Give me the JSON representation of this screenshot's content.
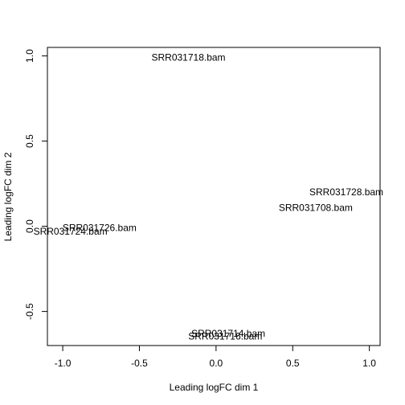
{
  "chart_data": {
    "type": "scatter",
    "marker": "text-labels",
    "xlabel": "Leading logFC dim 1",
    "ylabel": "Leading logFC dim 2",
    "xlim": [
      -1.1,
      1.07
    ],
    "ylim": [
      -0.7,
      1.05
    ],
    "xticks": [
      {
        "value": -1.0,
        "label": "-1.0"
      },
      {
        "value": -0.5,
        "label": "-0.5"
      },
      {
        "value": 0.0,
        "label": "0.0"
      },
      {
        "value": 0.5,
        "label": "0.5"
      },
      {
        "value": 1.0,
        "label": "1.0"
      }
    ],
    "yticks": [
      {
        "value": -0.5,
        "label": "-0.5"
      },
      {
        "value": 0.0,
        "label": "0.0"
      },
      {
        "value": 0.5,
        "label": "0.5"
      },
      {
        "value": 1.0,
        "label": "1.0"
      }
    ],
    "grid": false,
    "points": [
      {
        "label": "SRR031718.bam",
        "x": -0.18,
        "y": 0.99
      },
      {
        "label": "SRR031728.bam",
        "x": 0.85,
        "y": 0.2
      },
      {
        "label": "SRR031708.bam",
        "x": 0.65,
        "y": 0.11
      },
      {
        "label": "SRR031726.bam",
        "x": -0.76,
        "y": -0.01
      },
      {
        "label": "SRR031724.bam",
        "x": -0.95,
        "y": -0.03
      },
      {
        "label": "SRR031714.bam",
        "x": 0.08,
        "y": -0.63
      },
      {
        "label": "SRR031716.bam",
        "x": 0.06,
        "y": -0.645
      }
    ],
    "colors": {
      "text": "#000000",
      "axis": "#000000",
      "background": "#ffffff"
    }
  }
}
